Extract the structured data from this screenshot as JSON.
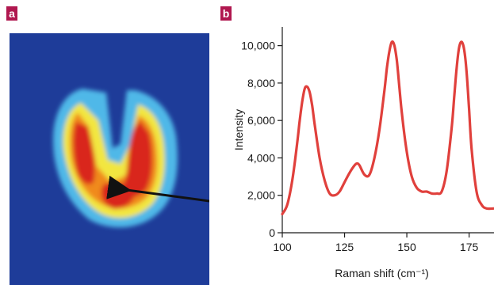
{
  "panels": {
    "a_label": "a",
    "b_label": "b"
  },
  "heatmap": {
    "colors": {
      "background": "#1e3c99",
      "outer": "#4fb8e8",
      "mid": "#f2e640",
      "inner": "#f08a1c",
      "core": "#d9251c",
      "arrow": "#111111"
    }
  },
  "chart_data": {
    "type": "line",
    "xlabel": "Raman shift (cm⁻¹)",
    "ylabel": "Intensity",
    "xlim": [
      100,
      185
    ],
    "ylim": [
      0,
      11000
    ],
    "x_ticks": [
      100,
      125,
      150,
      175
    ],
    "x_tick_labels": [
      "100",
      "125",
      "150",
      "175"
    ],
    "y_ticks": [
      0,
      2000,
      4000,
      6000,
      8000,
      10000
    ],
    "y_tick_labels": [
      "0",
      "2,000",
      "4,000",
      "6,000",
      "8,000",
      "10,000"
    ],
    "line_color": "#e0403c",
    "series": [
      {
        "x": [
          100,
          102,
          104,
          106,
          107,
          108,
          109,
          110,
          111,
          112,
          113,
          115,
          117,
          119,
          121,
          123,
          125,
          127,
          129,
          130,
          131,
          133,
          135,
          137,
          139,
          141,
          142,
          143,
          144,
          145,
          146,
          147,
          148,
          150,
          152,
          154,
          156,
          158,
          160,
          162,
          164,
          166,
          168,
          169,
          170,
          171,
          172,
          173,
          174,
          175,
          176,
          178,
          180,
          182,
          185
        ],
        "y": [
          1000,
          1500,
          2800,
          4800,
          6000,
          7000,
          7700,
          7800,
          7500,
          6800,
          5800,
          4000,
          2800,
          2100,
          2000,
          2200,
          2700,
          3200,
          3600,
          3700,
          3600,
          3100,
          3100,
          4000,
          5500,
          7600,
          8800,
          9700,
          10200,
          10000,
          9200,
          7800,
          6400,
          4300,
          3000,
          2400,
          2200,
          2200,
          2100,
          2100,
          2200,
          3300,
          5600,
          7200,
          8800,
          9900,
          10200,
          9800,
          8600,
          6600,
          4500,
          2200,
          1500,
          1300,
          1300
        ]
      }
    ]
  }
}
